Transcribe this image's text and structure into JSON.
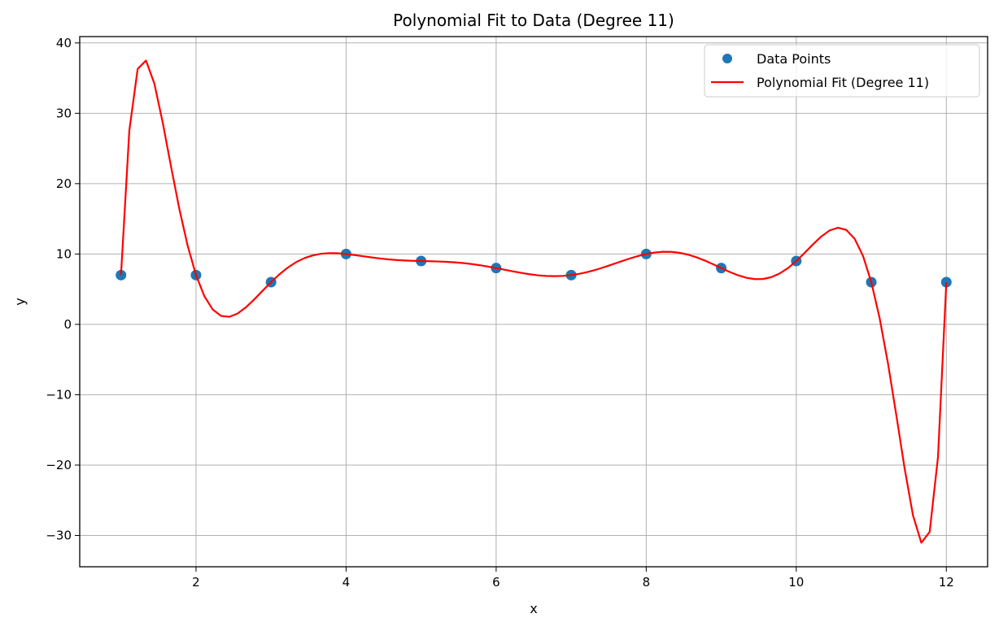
{
  "chart_data": {
    "type": "scatter+line",
    "title": "Polynomial Fit to Data (Degree 11)",
    "xlabel": "x",
    "ylabel": "y",
    "xlim": [
      0.45,
      12.55
    ],
    "ylim": [
      -34.45,
      40.9
    ],
    "xticks": [
      2,
      4,
      6,
      8,
      10,
      12
    ],
    "yticks": [
      -30,
      -20,
      -10,
      0,
      10,
      20,
      30,
      40
    ],
    "grid": true,
    "legend_position": "top-right",
    "series": [
      {
        "name": "Data Points",
        "kind": "scatter",
        "color": "#1f77b4",
        "x": [
          1,
          2,
          3,
          4,
          5,
          6,
          7,
          8,
          9,
          10,
          11,
          12
        ],
        "y": [
          7,
          7,
          6,
          10,
          9,
          8,
          7,
          10,
          8,
          9,
          6,
          6
        ]
      },
      {
        "name": "Polynomial Fit (Degree 11)",
        "kind": "line",
        "color": "#ff0000",
        "degree": 11,
        "x_range": [
          1,
          12
        ]
      }
    ]
  }
}
